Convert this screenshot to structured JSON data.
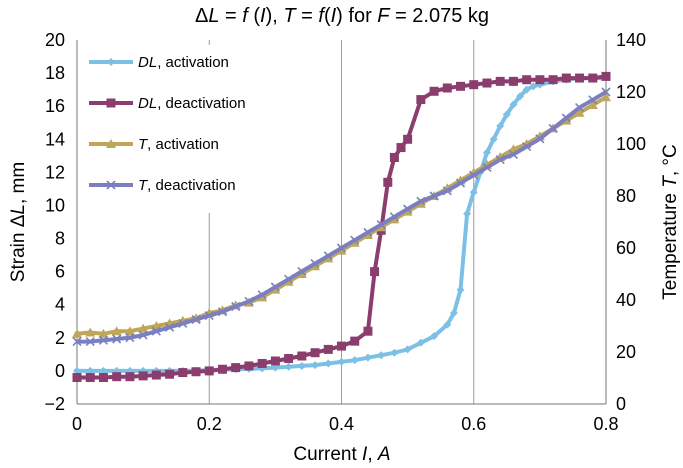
{
  "chart_data": {
    "type": "line",
    "title": {
      "parts": [
        {
          "text": "Δ",
          "italic": false
        },
        {
          "text": "L",
          "italic": true
        },
        {
          "text": " = ",
          "italic": false
        },
        {
          "text": "f",
          "italic": true
        },
        {
          "text": " (",
          "italic": false
        },
        {
          "text": "I",
          "italic": true
        },
        {
          "text": "),  ",
          "italic": false
        },
        {
          "text": "T",
          "italic": true
        },
        {
          "text": " = ",
          "italic": false
        },
        {
          "text": "f",
          "italic": true
        },
        {
          "text": "(",
          "italic": false
        },
        {
          "text": "I",
          "italic": true
        },
        {
          "text": ")   for ",
          "italic": false
        },
        {
          "text": "F",
          "italic": true
        },
        {
          "text": " = 2.075 kg",
          "italic": false
        }
      ]
    },
    "xlabel": {
      "parts": [
        {
          "text": "Current ",
          "italic": false
        },
        {
          "text": "I",
          "italic": true
        },
        {
          "text": ", ",
          "italic": false
        },
        {
          "text": "A",
          "italic": true
        }
      ]
    },
    "ylabel_left": {
      "parts": [
        {
          "text": "Strain Δ",
          "italic": false
        },
        {
          "text": "L",
          "italic": true
        },
        {
          "text": ", mm",
          "italic": false
        }
      ]
    },
    "ylabel_right": {
      "parts": [
        {
          "text": "Temperature ",
          "italic": false
        },
        {
          "text": "T",
          "italic": true
        },
        {
          "text": ", °C",
          "italic": false
        }
      ]
    },
    "xlim": [
      0,
      0.8
    ],
    "ylim_left": [
      -2,
      20
    ],
    "ylim_right": [
      0,
      140
    ],
    "x_ticks": [
      "0",
      "0.2",
      "0.4",
      "0.6",
      "0.8"
    ],
    "y_left_ticks": [
      "−2",
      "0",
      "2",
      "4",
      "6",
      "8",
      "10",
      "12",
      "14",
      "16",
      "18",
      "20"
    ],
    "y_right_ticks": [
      "0",
      "20",
      "40",
      "60",
      "80",
      "100",
      "120",
      "140"
    ],
    "grid": "vertical",
    "legend_placement": "top-left",
    "series": [
      {
        "name_parts": [
          {
            "text": "DL",
            "italic": true
          },
          {
            "text": ", activation",
            "italic": false
          }
        ],
        "axis": "left",
        "color": "#7CC0E6",
        "marker": "diamond",
        "x": [
          0,
          0.02,
          0.04,
          0.06,
          0.08,
          0.1,
          0.12,
          0.14,
          0.16,
          0.18,
          0.2,
          0.22,
          0.24,
          0.26,
          0.28,
          0.3,
          0.32,
          0.34,
          0.36,
          0.38,
          0.4,
          0.42,
          0.44,
          0.46,
          0.48,
          0.5,
          0.52,
          0.54,
          0.56,
          0.57,
          0.58,
          0.59,
          0.6,
          0.61,
          0.62,
          0.63,
          0.64,
          0.65,
          0.66,
          0.67,
          0.68,
          0.69,
          0.7,
          0.72,
          0.74,
          0.76,
          0.78,
          0.8
        ],
        "y": [
          0,
          0,
          0,
          0,
          0,
          0,
          0,
          0,
          0,
          0.02,
          0.05,
          0.08,
          0.1,
          0.12,
          0.15,
          0.2,
          0.25,
          0.3,
          0.35,
          0.45,
          0.55,
          0.65,
          0.8,
          0.95,
          1.1,
          1.3,
          1.7,
          2.1,
          2.8,
          3.5,
          4.9,
          9.5,
          10.8,
          12.0,
          13.2,
          14.0,
          14.8,
          15.5,
          16.1,
          16.6,
          17.0,
          17.2,
          17.3,
          17.5,
          17.6,
          17.7,
          17.7,
          17.7
        ]
      },
      {
        "name_parts": [
          {
            "text": "DL",
            "italic": true
          },
          {
            "text": ", deactivation",
            "italic": false
          }
        ],
        "axis": "left",
        "color": "#8B3D6E",
        "marker": "square",
        "x": [
          0,
          0.02,
          0.04,
          0.06,
          0.08,
          0.1,
          0.12,
          0.14,
          0.16,
          0.18,
          0.2,
          0.22,
          0.24,
          0.26,
          0.28,
          0.3,
          0.32,
          0.34,
          0.36,
          0.38,
          0.4,
          0.42,
          0.44,
          0.45,
          0.46,
          0.47,
          0.48,
          0.49,
          0.5,
          0.52,
          0.54,
          0.56,
          0.58,
          0.6,
          0.62,
          0.64,
          0.66,
          0.68,
          0.7,
          0.72,
          0.74,
          0.76,
          0.78,
          0.8
        ],
        "y": [
          -0.4,
          -0.4,
          -0.4,
          -0.35,
          -0.35,
          -0.3,
          -0.25,
          -0.2,
          -0.1,
          -0.05,
          0,
          0.1,
          0.2,
          0.3,
          0.45,
          0.6,
          0.75,
          0.9,
          1.1,
          1.3,
          1.5,
          1.8,
          2.4,
          6.0,
          8.5,
          11.4,
          12.9,
          13.5,
          14.0,
          16.4,
          16.9,
          17.1,
          17.2,
          17.3,
          17.4,
          17.5,
          17.5,
          17.6,
          17.6,
          17.6,
          17.7,
          17.7,
          17.7,
          17.8
        ]
      },
      {
        "name_parts": [
          {
            "text": "T",
            "italic": true
          },
          {
            "text": ", activation",
            "italic": false
          }
        ],
        "axis": "right",
        "color": "#BFA75A",
        "marker": "triangle",
        "x": [
          0,
          0.02,
          0.04,
          0.06,
          0.08,
          0.1,
          0.12,
          0.14,
          0.16,
          0.18,
          0.2,
          0.22,
          0.24,
          0.26,
          0.28,
          0.3,
          0.32,
          0.34,
          0.36,
          0.38,
          0.4,
          0.42,
          0.44,
          0.46,
          0.48,
          0.5,
          0.52,
          0.54,
          0.56,
          0.58,
          0.6,
          0.62,
          0.64,
          0.66,
          0.68,
          0.7,
          0.72,
          0.74,
          0.76,
          0.78,
          0.8
        ],
        "y": [
          27,
          27.5,
          27,
          28,
          28,
          29,
          30,
          31,
          32,
          33,
          35,
          36,
          38,
          39,
          41,
          44,
          47,
          50,
          53,
          56,
          59,
          62,
          65,
          68,
          71,
          74,
          77,
          80,
          83,
          86,
          89,
          92,
          95,
          98,
          100,
          103,
          106,
          109,
          112,
          115,
          118
        ]
      },
      {
        "name_parts": [
          {
            "text": "T",
            "italic": true
          },
          {
            "text": ", deactivation",
            "italic": false
          }
        ],
        "axis": "right",
        "color": "#7B7FC0",
        "marker": "x",
        "x": [
          0,
          0.02,
          0.04,
          0.06,
          0.08,
          0.1,
          0.12,
          0.14,
          0.16,
          0.18,
          0.2,
          0.22,
          0.24,
          0.26,
          0.28,
          0.3,
          0.32,
          0.34,
          0.36,
          0.38,
          0.4,
          0.42,
          0.44,
          0.46,
          0.48,
          0.5,
          0.52,
          0.54,
          0.56,
          0.58,
          0.6,
          0.62,
          0.64,
          0.66,
          0.68,
          0.7,
          0.72,
          0.74,
          0.76,
          0.78,
          0.8
        ],
        "y": [
          24,
          24,
          24.5,
          25,
          25.5,
          26.5,
          28,
          29.5,
          31,
          32.5,
          34,
          35.5,
          37.5,
          39.5,
          42,
          45,
          48,
          51,
          54,
          57,
          60,
          63,
          66,
          69,
          72,
          75,
          78,
          80,
          82,
          85,
          88,
          91,
          94,
          96,
          99,
          102,
          106,
          110,
          114,
          117,
          120
        ]
      }
    ]
  }
}
